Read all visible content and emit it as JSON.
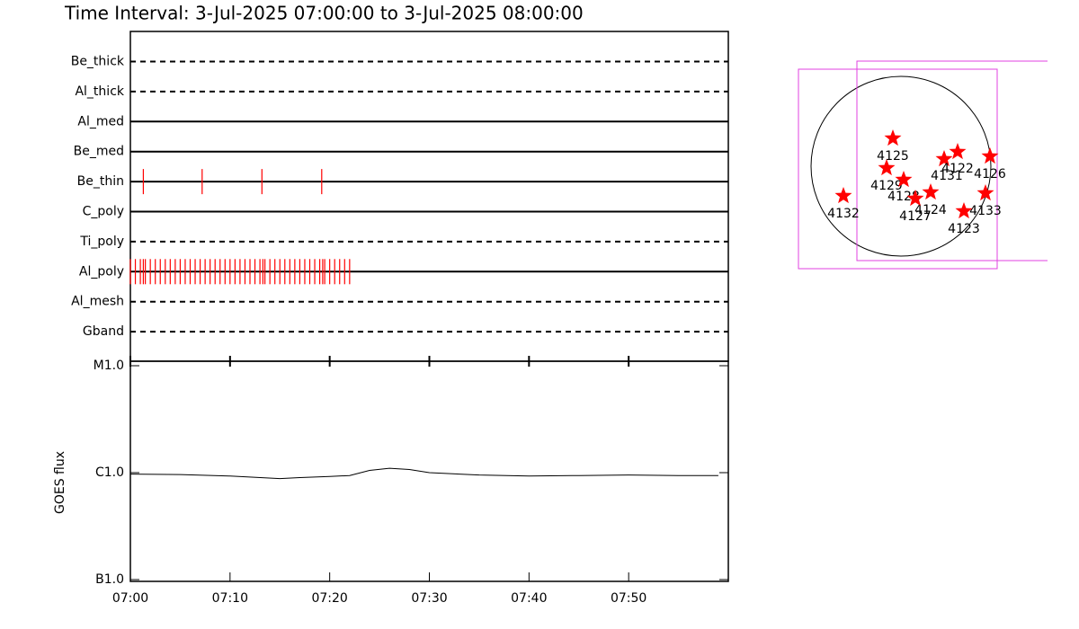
{
  "chart_data": [
    {
      "type": "event",
      "title": "Time Interval:  3-Jul-2025 07:00:00 to  3-Jul-2025 08:00:00",
      "color": "#ff0000",
      "xlim": [
        0,
        60
      ],
      "rows": [
        {
          "name": "Be_thick",
          "style": "dashed",
          "times": []
        },
        {
          "name": "Al_thick",
          "style": "dashed",
          "times": []
        },
        {
          "name": "Al_med",
          "style": "solid",
          "times": []
        },
        {
          "name": "Be_med",
          "style": "solid",
          "times": []
        },
        {
          "name": "Be_thin",
          "style": "solid",
          "times": [
            1.3,
            7.2,
            13.2,
            19.2
          ]
        },
        {
          "name": "C_poly",
          "style": "solid",
          "times": []
        },
        {
          "name": "Ti_poly",
          "style": "dashed",
          "times": []
        },
        {
          "name": "Al_poly",
          "style": "solid",
          "times": [
            0,
            0.5,
            1,
            1.3,
            1.5,
            2,
            2.5,
            3,
            3.5,
            4,
            4.5,
            5,
            5.5,
            6,
            6.5,
            7,
            7.5,
            8,
            8.5,
            9,
            9.5,
            10,
            10.5,
            11,
            11.5,
            12,
            12.5,
            13,
            13.3,
            13.5,
            14,
            14.5,
            15,
            15.5,
            16,
            16.5,
            17,
            17.5,
            18,
            18.5,
            19,
            19.3,
            19.5,
            20,
            20.5,
            21,
            21.5,
            22
          ]
        },
        {
          "name": "Al_mesh",
          "style": "dashed",
          "times": []
        },
        {
          "name": "Gband",
          "style": "dashed",
          "times": []
        }
      ]
    },
    {
      "type": "line",
      "y_label": "GOES flux",
      "log_scale": true,
      "color": "#000000",
      "xlim": [
        0,
        60
      ],
      "xticks": [
        {
          "value": 0,
          "label": "07:00"
        },
        {
          "value": 10,
          "label": "07:10"
        },
        {
          "value": 20,
          "label": "07:20"
        },
        {
          "value": 30,
          "label": "07:30"
        },
        {
          "value": 40,
          "label": "07:40"
        },
        {
          "value": 50,
          "label": "07:50"
        }
      ],
      "ylim": [
        1e-07,
        1e-05
      ],
      "yticks": [
        {
          "value": 1e-05,
          "label": "M1.0"
        },
        {
          "value": 1e-06,
          "label": "C1.0"
        },
        {
          "value": 1e-07,
          "label": "B1.0"
        }
      ],
      "x": [
        0,
        5,
        10,
        15,
        17,
        20,
        22,
        24,
        26,
        28,
        30,
        35,
        40,
        45,
        50,
        55,
        59
      ],
      "values": [
        9.7e-07,
        9.6e-07,
        9.3e-07,
        8.8e-07,
        9e-07,
        9.2e-07,
        9.4e-07,
        1.05e-06,
        1.1e-06,
        1.07e-06,
        1e-06,
        9.5e-07,
        9.3e-07,
        9.4e-07,
        9.5e-07,
        9.4e-07,
        9.4e-07
      ]
    }
  ],
  "map": {
    "star_color": "#ff0000",
    "box_color": "#e040e0",
    "regions": [
      {
        "label": "4125"
      },
      {
        "label": "4129"
      },
      {
        "label": "4131"
      },
      {
        "label": "4122"
      },
      {
        "label": "4126"
      },
      {
        "label": "4128"
      },
      {
        "label": "4124"
      },
      {
        "label": "4127"
      },
      {
        "label": "4133"
      },
      {
        "label": "4123"
      },
      {
        "label": "4132"
      }
    ]
  }
}
